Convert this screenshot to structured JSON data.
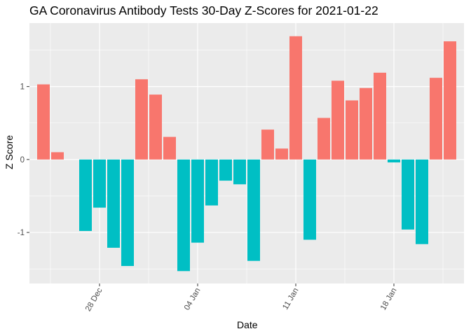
{
  "chart_data": {
    "type": "bar",
    "title": "GA Coronavirus Antibody Tests 30-Day Z-Scores for 2021-01-22",
    "xlabel": "Date",
    "ylabel": "Z Score",
    "x_tick_labels": [
      {
        "label": "28 Dec",
        "date": "2020-12-28"
      },
      {
        "label": "04 Jan",
        "date": "2021-01-04"
      },
      {
        "label": "11 Jan",
        "date": "2021-01-11"
      },
      {
        "label": "18 Jan",
        "date": "2021-01-18"
      }
    ],
    "y_ticks": [
      -1,
      0,
      1
    ],
    "ylim": [
      -1.7,
      1.87
    ],
    "xlim": [
      "2020-12-23",
      "2021-01-23"
    ],
    "grid": true,
    "legend": "none",
    "colors": {
      "positive": "#F8766D",
      "negative": "#00BFC4",
      "panel": "#EBEBEB",
      "grid": "#FFFFFF"
    },
    "dates": [
      "2020-12-24",
      "2020-12-25",
      "2020-12-26",
      "2020-12-27",
      "2020-12-28",
      "2020-12-29",
      "2020-12-30",
      "2020-12-31",
      "2021-01-01",
      "2021-01-02",
      "2021-01-03",
      "2021-01-04",
      "2021-01-05",
      "2021-01-06",
      "2021-01-07",
      "2021-01-08",
      "2021-01-09",
      "2021-01-10",
      "2021-01-11",
      "2021-01-12",
      "2021-01-13",
      "2021-01-14",
      "2021-01-15",
      "2021-01-16",
      "2021-01-17",
      "2021-01-18",
      "2021-01-19",
      "2021-01-20",
      "2021-01-21",
      "2021-01-22"
    ],
    "values": [
      1.03,
      0.1,
      0.0,
      -0.98,
      -0.66,
      -1.21,
      -1.46,
      1.1,
      0.89,
      0.31,
      -1.53,
      -1.14,
      -0.63,
      -0.29,
      -0.34,
      -1.39,
      0.41,
      0.15,
      1.69,
      -1.1,
      0.57,
      1.08,
      0.81,
      0.98,
      1.19,
      -0.04,
      -0.96,
      -1.16,
      1.12,
      1.62
    ]
  }
}
